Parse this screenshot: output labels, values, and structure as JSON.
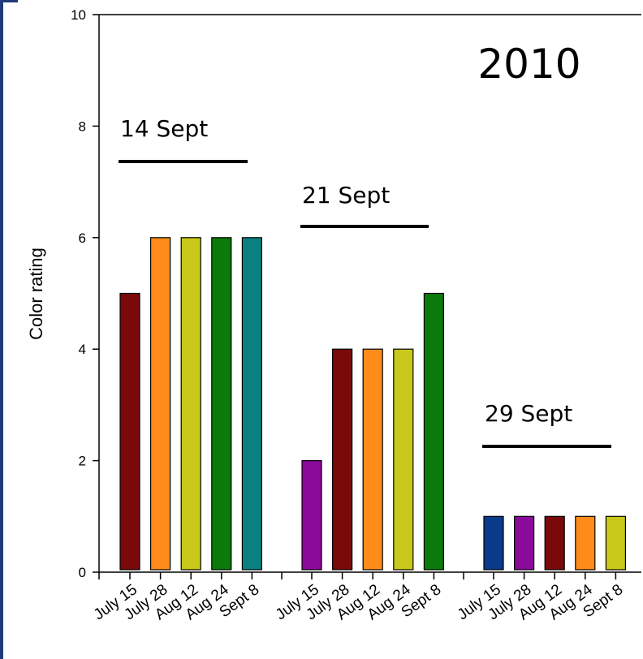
{
  "chart_data": {
    "type": "bar",
    "title": "2010",
    "ylabel": "Color rating",
    "xlabel": "",
    "ylim": [
      0,
      10
    ],
    "yticks": [
      0,
      2,
      4,
      6,
      8,
      10
    ],
    "grid": false,
    "groups": [
      {
        "label": "14 Sept",
        "categories": [
          "July 15",
          "July 28",
          "Aug 12",
          "Aug 24",
          "Sept 8"
        ],
        "values": [
          5,
          6,
          6,
          6,
          6
        ],
        "colors": [
          "#7a0a0a",
          "#ff8c1a",
          "#c8c81a",
          "#0a7a0a",
          "#0a8080"
        ]
      },
      {
        "label": "21 Sept",
        "categories": [
          "July 15",
          "July 28",
          "Aug 12",
          "Aug 24",
          "Sept 8"
        ],
        "values": [
          2,
          4,
          4,
          4,
          5
        ],
        "colors": [
          "#8a0a9a",
          "#7a0a0a",
          "#ff8c1a",
          "#c8c81a",
          "#0a7a0a"
        ]
      },
      {
        "label": "29 Sept",
        "categories": [
          "July 15",
          "July 28",
          "Aug 12",
          "Aug 24",
          "Sept 8"
        ],
        "values": [
          1,
          1,
          1,
          1,
          1
        ],
        "colors": [
          "#0a3a8a",
          "#8a0a9a",
          "#7a0a0a",
          "#ff8c1a",
          "#c8c81a"
        ]
      }
    ]
  }
}
